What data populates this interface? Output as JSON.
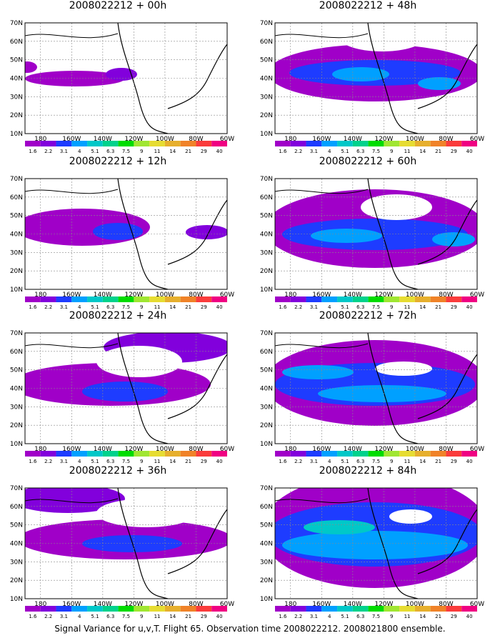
{
  "chart_data": [
    {
      "type": "heatmap",
      "title": "2008022212 + 00h",
      "lat_ticks": [
        "10N",
        "20N",
        "30N",
        "40N",
        "50N",
        "60N",
        "70N"
      ],
      "lon_ticks": [
        "180",
        "160W",
        "140W",
        "120W",
        "100W",
        "80W",
        "60W"
      ],
      "xlim": [
        -190,
        -60
      ],
      "ylim": [
        10,
        70
      ],
      "legend_levels": [
        "1.6",
        "2.2",
        "3.1",
        "4",
        "5.1",
        "6.3",
        "7.5",
        "9",
        "11",
        "14",
        "21",
        "29",
        "40"
      ],
      "grid": true
    },
    {
      "type": "heatmap",
      "title": "2008022212 + 12h",
      "lat_ticks": [
        "10N",
        "20N",
        "30N",
        "40N",
        "50N",
        "60N",
        "70N"
      ],
      "lon_ticks": [
        "180",
        "160W",
        "140W",
        "120W",
        "100W",
        "80W",
        "60W"
      ],
      "xlim": [
        -190,
        -60
      ],
      "ylim": [
        10,
        70
      ],
      "legend_levels": [
        "1.6",
        "2.2",
        "3.1",
        "4",
        "5.1",
        "6.3",
        "7.5",
        "9",
        "11",
        "14",
        "21",
        "29",
        "40"
      ],
      "grid": true
    },
    {
      "type": "heatmap",
      "title": "2008022212 + 24h",
      "lat_ticks": [
        "10N",
        "20N",
        "30N",
        "40N",
        "50N",
        "60N",
        "70N"
      ],
      "lon_ticks": [
        "180",
        "160W",
        "140W",
        "120W",
        "100W",
        "80W",
        "60W"
      ],
      "xlim": [
        -190,
        -60
      ],
      "ylim": [
        10,
        70
      ],
      "legend_levels": [
        "1.6",
        "2.2",
        "3.1",
        "4",
        "5.1",
        "6.3",
        "7.5",
        "9",
        "11",
        "14",
        "21",
        "29",
        "40"
      ],
      "grid": true
    },
    {
      "type": "heatmap",
      "title": "2008022212 + 36h",
      "lat_ticks": [
        "10N",
        "20N",
        "30N",
        "40N",
        "50N",
        "60N",
        "70N"
      ],
      "lon_ticks": [
        "180",
        "160W",
        "140W",
        "120W",
        "100W",
        "80W",
        "60W"
      ],
      "xlim": [
        -190,
        -60
      ],
      "ylim": [
        10,
        70
      ],
      "legend_levels": [
        "1.6",
        "2.2",
        "3.1",
        "4",
        "5.1",
        "6.3",
        "7.5",
        "9",
        "11",
        "14",
        "21",
        "29",
        "40"
      ],
      "grid": true
    },
    {
      "type": "heatmap",
      "title": "2008022212 + 48h",
      "lat_ticks": [
        "10N",
        "20N",
        "30N",
        "40N",
        "50N",
        "60N",
        "70N"
      ],
      "lon_ticks": [
        "180",
        "160W",
        "140W",
        "120W",
        "100W",
        "80W",
        "60W"
      ],
      "xlim": [
        -190,
        -60
      ],
      "ylim": [
        10,
        70
      ],
      "legend_levels": [
        "1.6",
        "2.2",
        "3.1",
        "4",
        "5.1",
        "6.3",
        "7.5",
        "9",
        "11",
        "14",
        "21",
        "29",
        "40"
      ],
      "grid": true
    },
    {
      "type": "heatmap",
      "title": "2008022212 + 60h",
      "lat_ticks": [
        "10N",
        "20N",
        "30N",
        "40N",
        "50N",
        "60N",
        "70N"
      ],
      "lon_ticks": [
        "180",
        "160W",
        "140W",
        "120W",
        "100W",
        "80W",
        "60W"
      ],
      "xlim": [
        -190,
        -60
      ],
      "ylim": [
        10,
        70
      ],
      "legend_levels": [
        "1.6",
        "2.2",
        "3.1",
        "4",
        "5.1",
        "6.3",
        "7.5",
        "9",
        "11",
        "14",
        "21",
        "29",
        "40"
      ],
      "grid": true
    },
    {
      "type": "heatmap",
      "title": "2008022212 + 72h",
      "lat_ticks": [
        "10N",
        "20N",
        "30N",
        "40N",
        "50N",
        "60N",
        "70N"
      ],
      "lon_ticks": [
        "180",
        "160W",
        "140W",
        "120W",
        "100W",
        "80W",
        "60W"
      ],
      "xlim": [
        -190,
        -60
      ],
      "ylim": [
        10,
        70
      ],
      "legend_levels": [
        "1.6",
        "2.2",
        "3.1",
        "4",
        "5.1",
        "6.3",
        "7.5",
        "9",
        "11",
        "14",
        "21",
        "29",
        "40"
      ],
      "grid": true
    },
    {
      "type": "heatmap",
      "title": "2008022212 + 84h",
      "lat_ticks": [
        "10N",
        "20N",
        "30N",
        "40N",
        "50N",
        "60N",
        "70N"
      ],
      "lon_ticks": [
        "180",
        "160W",
        "140W",
        "120W",
        "100W",
        "80W",
        "60W"
      ],
      "xlim": [
        -190,
        -60
      ],
      "ylim": [
        10,
        70
      ],
      "legend_levels": [
        "1.6",
        "2.2",
        "3.1",
        "4",
        "5.1",
        "6.3",
        "7.5",
        "9",
        "11",
        "14",
        "21",
        "29",
        "40"
      ],
      "grid": true
    }
  ],
  "legend_colors": [
    "#a000c8",
    "#8200dc",
    "#1e3cff",
    "#00a0ff",
    "#00c8c8",
    "#00d28c",
    "#00dc00",
    "#a0e632",
    "#e6dc32",
    "#e6af2d",
    "#f08228",
    "#fa3c3c",
    "#f00082"
  ],
  "field_colors": {
    "purple": "#a000c8",
    "violet": "#8200dc",
    "blue": "#1e3cff",
    "cyan": "#00a0ff",
    "teal": "#00c8c8",
    "magenta": "#f00082"
  },
  "footer": "Signal Variance for u,v,T. Flight 65. Observation time 2008022212. 2008021800 ensemble."
}
